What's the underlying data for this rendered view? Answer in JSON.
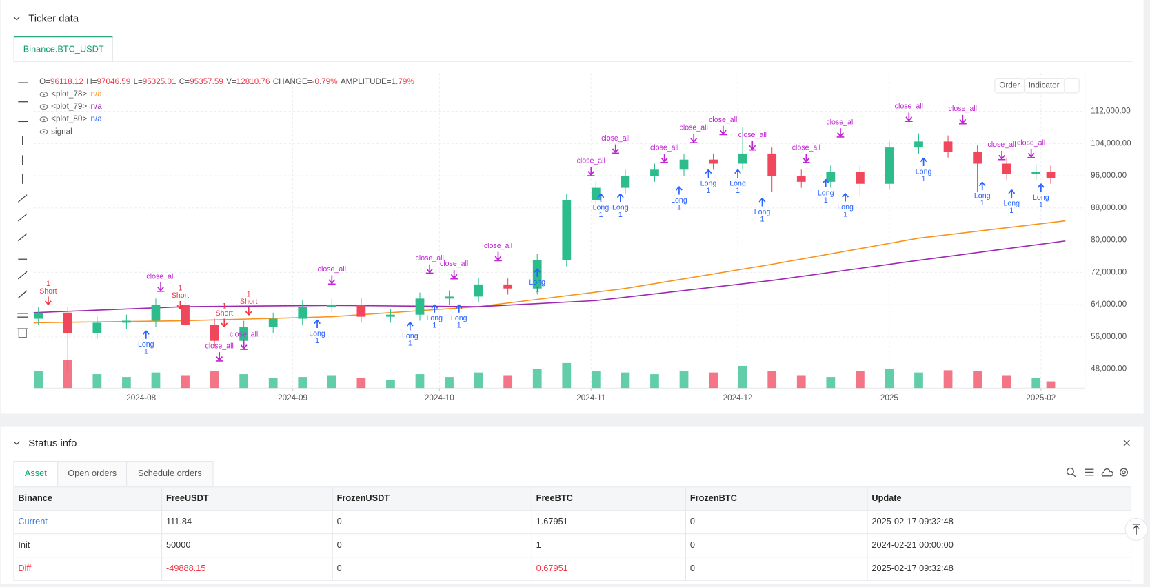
{
  "header": {
    "ticker_title": "Ticker data",
    "tab": "Binance.BTC_USDT",
    "buttons": [
      "Order",
      "Indicator"
    ]
  },
  "legend": {
    "ohlc": [
      {
        "label": "O=",
        "value": "96118.12"
      },
      {
        "label": "H=",
        "value": "97046.59"
      },
      {
        "label": "L=",
        "value": "95325.01"
      },
      {
        "label": "C=",
        "value": "95357.59"
      },
      {
        "label": "V=",
        "value": "12810.76"
      },
      {
        "label": "CHANGE=",
        "value": "-0.79%"
      },
      {
        "label": "AMPLITUDE=",
        "value": "1.79%"
      }
    ],
    "plots": [
      {
        "name": "<plot_78>",
        "value": "n/a",
        "color": "#f7931a"
      },
      {
        "name": "<plot_79>",
        "value": "n/a",
        "color": "#9c27b0"
      },
      {
        "name": "<plot_80>",
        "value": "n/a",
        "color": "#2962ff"
      },
      {
        "name": "signal"
      }
    ]
  },
  "chart_data": {
    "type": "candlestick",
    "xlim": [
      9,
      224
    ],
    "xticks": [
      {
        "value": 31,
        "label": "2024-08"
      },
      {
        "value": 62,
        "label": "2024-09"
      },
      {
        "value": 92,
        "label": "2024-10"
      },
      {
        "value": 123,
        "label": "2024-11"
      },
      {
        "value": 153,
        "label": "2024-12"
      },
      {
        "value": 184,
        "label": "2025"
      },
      {
        "value": 215,
        "label": "2025-02"
      }
    ],
    "ylim": [
      43273,
      121455
    ],
    "yticks": [
      {
        "value": 48000,
        "label": "48,000.00"
      },
      {
        "value": 56000,
        "label": "56,000.00"
      },
      {
        "value": 64000,
        "label": "64,000.00"
      },
      {
        "value": 72000,
        "label": "72,000.00"
      },
      {
        "value": 80000,
        "label": "80,000.00"
      },
      {
        "value": 88000,
        "label": "88,000.00"
      },
      {
        "value": 96000,
        "label": "96,000.00"
      },
      {
        "value": 104000,
        "label": "104,000.00"
      },
      {
        "value": 112000,
        "label": "112,000.00"
      }
    ],
    "grid": true,
    "up_color": "#2dbd8c",
    "down_color": "#f0475c",
    "x": [
      10,
      16,
      22,
      28,
      34,
      40,
      46,
      52,
      58,
      64,
      70,
      76,
      82,
      88,
      94,
      100,
      106,
      112,
      118,
      124,
      130,
      136,
      142,
      148,
      154,
      160,
      166,
      172,
      178,
      184,
      190,
      196,
      202,
      208,
      214,
      217
    ],
    "open": [
      60500,
      62000,
      57000,
      59500,
      60000,
      64000,
      59000,
      55000,
      58500,
      60500,
      63500,
      64000,
      61000,
      61500,
      65500,
      66000,
      69000,
      68000,
      75000,
      90000,
      93000,
      96000,
      97500,
      100000,
      99000,
      101500,
      96000,
      94500,
      97000,
      94000,
      103000,
      104500,
      102000,
      99000,
      96500,
      97000
    ],
    "high": [
      63500,
      63500,
      61000,
      61500,
      65500,
      65500,
      60500,
      60000,
      62000,
      65000,
      65500,
      65500,
      63000,
      67000,
      67500,
      70500,
      70500,
      76500,
      91500,
      94500,
      97500,
      99000,
      101500,
      101500,
      108000,
      103000,
      97500,
      98500,
      98500,
      104500,
      106500,
      106000,
      103500,
      100500,
      98500,
      98500
    ],
    "low": [
      59000,
      47000,
      55500,
      58000,
      58500,
      57500,
      53500,
      53500,
      57000,
      59000,
      62000,
      59500,
      59500,
      60000,
      64000,
      64500,
      66500,
      66500,
      73500,
      88500,
      91500,
      94500,
      96000,
      97500,
      97500,
      92000,
      93000,
      93000,
      91000,
      92500,
      101500,
      100500,
      92000,
      95000,
      95000,
      94000
    ],
    "close": [
      62000,
      57000,
      59500,
      60000,
      64000,
      59000,
      55000,
      58500,
      60500,
      63500,
      64000,
      61000,
      61500,
      65500,
      66000,
      69000,
      68000,
      75000,
      90000,
      93000,
      96000,
      97500,
      100000,
      99000,
      101500,
      96000,
      94500,
      97000,
      94000,
      103000,
      104500,
      102000,
      99000,
      96500,
      97000,
      95400
    ],
    "volume": [
      30,
      50,
      25,
      20,
      28,
      22,
      30,
      25,
      18,
      20,
      22,
      18,
      15,
      25,
      20,
      28,
      22,
      35,
      45,
      30,
      28,
      25,
      30,
      28,
      40,
      30,
      22,
      20,
      30,
      35,
      28,
      32,
      30,
      22,
      18,
      12
    ],
    "lines": [
      {
        "color": "#f7931a",
        "x": [
          9,
          40,
          70,
          100,
          130,
          160,
          190,
          220
        ],
        "values": [
          59500,
          60000,
          61000,
          63500,
          68000,
          74000,
          80500,
          84800
        ]
      },
      {
        "color": "#9c27b0",
        "x": [
          9,
          40,
          70,
          100,
          124,
          160,
          190,
          220
        ],
        "values": [
          62000,
          63500,
          63800,
          63500,
          65000,
          70000,
          75000,
          79800
        ]
      }
    ],
    "signals": {
      "long": {
        "text": "Long",
        "qty": 1,
        "color": "#2962ff",
        "x": [
          32,
          67,
          86,
          91,
          96,
          112,
          125,
          129,
          141,
          147,
          153,
          158,
          171,
          175,
          191,
          203,
          209,
          215
        ],
        "price": [
          57500,
          60200,
          59600,
          64000,
          64000,
          72900,
          91500,
          91500,
          93300,
          97500,
          97500,
          90400,
          95100,
          91600,
          100400,
          94400,
          92500,
          94000
        ]
      },
      "short": {
        "text": "Short",
        "qty": 1,
        "color": "#f23645",
        "x": [
          12,
          39,
          48,
          53
        ],
        "price": [
          64000,
          62900,
          58500,
          61400
        ]
      },
      "close": {
        "text": "close_all",
        "color": "#c026d3",
        "x": [
          35,
          47,
          52,
          70,
          90,
          95,
          104,
          123,
          128,
          138,
          144,
          150,
          156,
          167,
          174,
          188,
          199,
          207,
          213
        ],
        "price": [
          67300,
          50000,
          52900,
          69100,
          71800,
          70400,
          74900,
          96000,
          101600,
          99300,
          104200,
          106200,
          102400,
          99300,
          105600,
          109500,
          108900,
          100000,
          100500
        ]
      }
    }
  },
  "status": {
    "title": "Status info",
    "tabs": [
      "Asset",
      "Open orders",
      "Schedule orders"
    ],
    "table": {
      "columns": [
        "Binance",
        "FreeUSDT",
        "FrozenUSDT",
        "FreeBTC",
        "FrozenBTC",
        "Update"
      ],
      "rows": [
        [
          "Current",
          "111.84",
          "0",
          "1.67951",
          "0",
          "2025-02-17 09:32:48"
        ],
        [
          "Init",
          "50000",
          "0",
          "1",
          "0",
          "2024-02-21 00:00:00"
        ],
        [
          "Diff",
          "-49888.15",
          "0",
          "0.67951",
          "0",
          "2025-02-17 09:32:48"
        ]
      ]
    }
  }
}
